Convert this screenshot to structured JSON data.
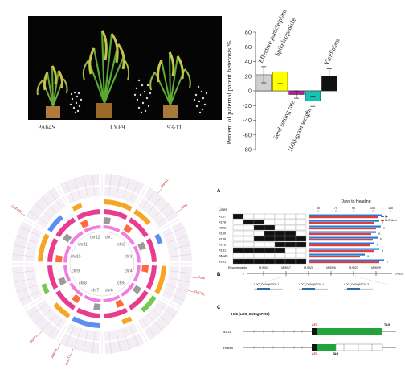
{
  "photo": {
    "labels": [
      "PA64S",
      "LYP9",
      "93-11"
    ]
  },
  "chart_data": {
    "type": "bar",
    "ylabel": "Percent of paternal parent heterosis %",
    "ylim": [
      -80,
      80
    ],
    "yticks": [
      80,
      60,
      40,
      20,
      0,
      -20,
      -40,
      -60,
      -80
    ],
    "categories": [
      "Effective panicle/plant",
      "Spikelet/panicle",
      "Seed setting rate",
      "1000-grain weight",
      "Yield/plant"
    ],
    "values": [
      22,
      26,
      -5,
      -14,
      20
    ],
    "errors": [
      11,
      16,
      5,
      7,
      10
    ],
    "colors": [
      "#d0d0d0",
      "#ffff00",
      "#b0209a",
      "#19c0b5",
      "#111111"
    ]
  },
  "circos": {
    "chr_labels": [
      "chr1",
      "chr2",
      "chr3",
      "chr4",
      "chr5",
      "chr6",
      "chr7",
      "chr8",
      "chr9",
      "chr10",
      "chr11",
      "chr12"
    ],
    "gene_labels": [
      "OsHd1",
      "Lab1",
      "OsMADS51",
      "OsCOL4",
      "OsGT1",
      "OsMYB",
      "OsAP2",
      "OsFKP"
    ]
  },
  "heading": {
    "panel_letter": "A",
    "axis_title": "Days to Heading",
    "xticks": [
      "50",
      "70",
      "90",
      "100",
      "110"
    ],
    "lines_header": "Lines",
    "lines": [
      "R167",
      "R178",
      "R202",
      "R190",
      "R186",
      "R176",
      "R181",
      "PA64S",
      "93-11"
    ],
    "sig": [
      "a",
      "b",
      "c",
      "a",
      "b",
      "c",
      "a",
      "a",
      "b"
    ],
    "legend": [
      "NL",
      "BL/Patient"
    ],
    "markers_label": "Recombinants",
    "markers": [
      "M-9004",
      "M-9017",
      "M-9020",
      "M-9026",
      "M-9023",
      "M-9029"
    ],
    "panel_b": "B",
    "panel_c": "C",
    "genes": [
      "LOC_Os06g57700.1",
      "LOC_Os06g57710.1",
      "LOC_Os06g57710.2"
    ],
    "ruler_left": "0",
    "ruler_right": "14.228"
  },
  "gene": {
    "title": "Hd6 (LOC_Os06g57700)",
    "row1": "93-11",
    "row2": "PA64S",
    "atg": "ATG",
    "tag": "TAG"
  }
}
